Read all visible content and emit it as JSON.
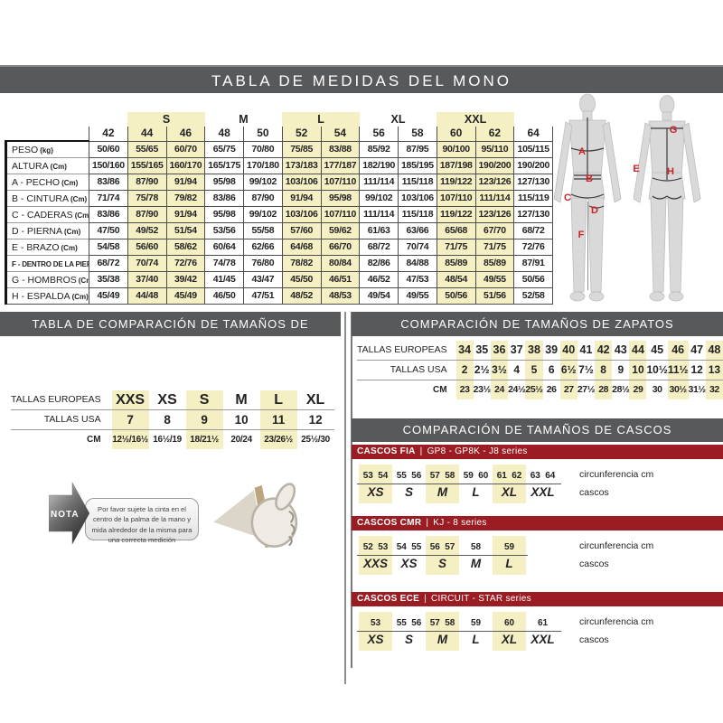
{
  "colors": {
    "header_gray": "#58595b",
    "bar_red": "#9c1c23",
    "highlight_yellow": "#f5efc4",
    "marker_red": "#cf2128"
  },
  "suit_table": {
    "title": "TABLA DE MEDIDAS DEL MONO",
    "size_groups": [
      {
        "label": "",
        "span": 1,
        "highlight": false
      },
      {
        "label": "S",
        "span": 2,
        "highlight": true
      },
      {
        "label": "M",
        "span": 2,
        "highlight": false
      },
      {
        "label": "L",
        "span": 2,
        "highlight": true
      },
      {
        "label": "XL",
        "span": 2,
        "highlight": false
      },
      {
        "label": "XXL",
        "span": 2,
        "highlight": true
      },
      {
        "label": "",
        "span": 1,
        "highlight": false
      }
    ],
    "sizes": [
      "42",
      "44",
      "46",
      "48",
      "50",
      "52",
      "54",
      "56",
      "58",
      "60",
      "62",
      "64"
    ],
    "highlight_columns": [
      1,
      2,
      5,
      6,
      9,
      10
    ],
    "rows": [
      {
        "label": "PESO",
        "unit": "(kg)",
        "values": [
          "50/60",
          "55/65",
          "60/70",
          "65/75",
          "70/80",
          "75/85",
          "83/88",
          "85/92",
          "87/95",
          "90/100",
          "95/110",
          "105/115"
        ]
      },
      {
        "label": "ALTURA",
        "unit": "(Cm)",
        "values": [
          "150/160",
          "155/165",
          "160/170",
          "165/175",
          "170/180",
          "173/183",
          "177/187",
          "182/190",
          "185/195",
          "187/198",
          "190/200",
          "190/200"
        ]
      },
      {
        "label": "A - PECHO",
        "unit": "(Cm)",
        "values": [
          "83/86",
          "87/90",
          "91/94",
          "95/98",
          "99/102",
          "103/106",
          "107/110",
          "111/114",
          "115/118",
          "119/122",
          "123/126",
          "127/130"
        ]
      },
      {
        "label": "B - CINTURA",
        "unit": "(Cm)",
        "values": [
          "71/74",
          "75/78",
          "79/82",
          "83/86",
          "87/90",
          "91/94",
          "95/98",
          "99/102",
          "103/106",
          "107/110",
          "111/114",
          "115/119"
        ]
      },
      {
        "label": "C - CADERAS",
        "unit": "(Cm)",
        "values": [
          "83/86",
          "87/90",
          "91/94",
          "95/98",
          "99/102",
          "103/106",
          "107/110",
          "111/114",
          "115/118",
          "119/122",
          "123/126",
          "127/130"
        ]
      },
      {
        "label": "D - PIERNA",
        "unit": "(Cm)",
        "values": [
          "47/50",
          "49/52",
          "51/54",
          "53/56",
          "55/58",
          "57/60",
          "59/62",
          "61/63",
          "63/66",
          "65/68",
          "67/70",
          "68/72"
        ]
      },
      {
        "label": "E - BRAZO",
        "unit": "(Cm)",
        "values": [
          "54/58",
          "56/60",
          "58/62",
          "60/64",
          "62/66",
          "64/68",
          "66/70",
          "68/72",
          "70/74",
          "71/75",
          "71/75",
          "72/76"
        ]
      },
      {
        "label": "F - DENTRO DE LA PIERNA",
        "unit": "(Cm)",
        "values": [
          "68/72",
          "70/74",
          "72/76",
          "74/78",
          "76/80",
          "78/82",
          "80/84",
          "82/86",
          "84/88",
          "85/89",
          "85/89",
          "87/91"
        ]
      },
      {
        "label": "G - HOMBROS",
        "unit": "(Cm)",
        "values": [
          "35/38",
          "37/40",
          "39/42",
          "41/45",
          "43/47",
          "45/50",
          "46/51",
          "46/52",
          "47/53",
          "48/54",
          "49/55",
          "50/56"
        ]
      },
      {
        "label": "H - ESPALDA",
        "unit": "(Cm)",
        "values": [
          "45/49",
          "44/48",
          "45/49",
          "46/50",
          "47/51",
          "48/52",
          "48/53",
          "49/54",
          "49/55",
          "50/56",
          "51/56",
          "52/58"
        ]
      }
    ]
  },
  "body_diagram": {
    "markers": [
      {
        "letter": "A",
        "x": 32,
        "y": 69
      },
      {
        "letter": "B",
        "x": 40,
        "y": 99
      },
      {
        "letter": "C",
        "x": 16,
        "y": 120
      },
      {
        "letter": "D",
        "x": 46,
        "y": 134
      },
      {
        "letter": "F",
        "x": 31,
        "y": 161
      },
      {
        "letter": "G",
        "x": 133,
        "y": 45
      },
      {
        "letter": "E",
        "x": 92,
        "y": 88
      },
      {
        "letter": "H",
        "x": 130,
        "y": 91
      }
    ]
  },
  "gloves": {
    "title": "TABLA DE COMPARACIÓN DE TAMAÑOS DE GUANTES",
    "highlight_columns": [
      0,
      2,
      4
    ],
    "rows": [
      {
        "label": "TALLAS EUROPEAS",
        "values": [
          "XXS",
          "XS",
          "S",
          "M",
          "L",
          "XL"
        ]
      },
      {
        "label": "TALLAS USA",
        "values": [
          "7",
          "8",
          "9",
          "10",
          "11",
          "12"
        ]
      },
      {
        "label": "CM",
        "values": [
          "12½/16½",
          "16½/19",
          "18/21½",
          "20/24",
          "23/26½",
          "25½/30"
        ]
      }
    ],
    "note_label": "NOTA",
    "note_text": "Por favor sujete la cinta en el centro de la palma de la mano y mida alrededor de la misma para una correcta medición"
  },
  "shoes": {
    "title": "COMPARACIÓN DE TAMAÑOS DE ZAPATOS",
    "highlight_columns": [
      0,
      2,
      4,
      6,
      8,
      10,
      12,
      14
    ],
    "rows": [
      {
        "label": "TALLAS EUROPEAS",
        "values": [
          "34",
          "35",
          "36",
          "37",
          "38",
          "39",
          "40",
          "41",
          "42",
          "43",
          "44",
          "45",
          "46",
          "47",
          "48"
        ]
      },
      {
        "label": "TALLAS USA",
        "values": [
          "2",
          "2½",
          "3½",
          "4",
          "5",
          "6",
          "6½",
          "7½",
          "8",
          "9",
          "10",
          "10½",
          "11½",
          "12",
          "13"
        ]
      },
      {
        "label": "CM",
        "values": [
          "23",
          "23½",
          "24",
          "24½",
          "25½",
          "26",
          "27",
          "27½",
          "28",
          "28½",
          "29",
          "30",
          "30½",
          "31½",
          "32"
        ]
      }
    ]
  },
  "helmets": {
    "title": "COMPARACIÓN DE TAMAÑOS DE CASCOS",
    "circumference_label": "circunferencia cm",
    "sizes_label": "cascos",
    "tables": [
      {
        "name": "CASCOS FIA",
        "series": "GP8 - GP8K - J8 series",
        "groups": [
          {
            "nums": [
              "53",
              "54"
            ],
            "size": "XS",
            "hl": true
          },
          {
            "nums": [
              "55",
              "56"
            ],
            "size": "S",
            "hl": false
          },
          {
            "nums": [
              "57",
              "58"
            ],
            "size": "M",
            "hl": true
          },
          {
            "nums": [
              "59",
              "60"
            ],
            "size": "L",
            "hl": false
          },
          {
            "nums": [
              "61",
              "62"
            ],
            "size": "XL",
            "hl": true
          },
          {
            "nums": [
              "63",
              "64"
            ],
            "size": "XXL",
            "hl": false
          }
        ]
      },
      {
        "name": "CASCOS CMR",
        "series": "KJ - 8 series",
        "groups": [
          {
            "nums": [
              "52",
              "53"
            ],
            "size": "XXS",
            "hl": true
          },
          {
            "nums": [
              "54",
              "55"
            ],
            "size": "XS",
            "hl": false
          },
          {
            "nums": [
              "56",
              "57"
            ],
            "size": "S",
            "hl": true
          },
          {
            "nums": [
              "58"
            ],
            "size": "M",
            "hl": false
          },
          {
            "nums": [
              "59"
            ],
            "size": "L",
            "hl": true
          }
        ]
      },
      {
        "name": "CASCOS ECE",
        "series": "CIRCUIT - STAR series",
        "groups": [
          {
            "nums": [
              "53"
            ],
            "size": "XS",
            "hl": true
          },
          {
            "nums": [
              "55",
              "56"
            ],
            "size": "S",
            "hl": false
          },
          {
            "nums": [
              "57",
              "58"
            ],
            "size": "M",
            "hl": true
          },
          {
            "nums": [
              "59"
            ],
            "size": "L",
            "hl": false
          },
          {
            "nums": [
              "60"
            ],
            "size": "XL",
            "hl": true
          },
          {
            "nums": [
              "61"
            ],
            "size": "XXL",
            "hl": false
          }
        ]
      }
    ]
  }
}
